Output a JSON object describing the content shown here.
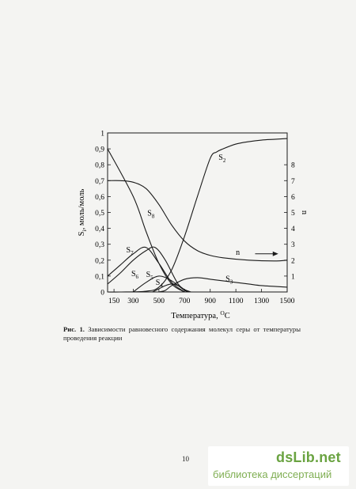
{
  "chart_data": {
    "type": "line",
    "xlabel": "Температура, ",
    "xlabel_sup": "O",
    "xlabel_unit": "C",
    "ylabel_left": "S",
    "ylabel_left_sub": "i",
    "ylabel_left_rest": ", моль/моль",
    "ylabel_right": "n",
    "xlim": [
      100,
      1500
    ],
    "ylim_left": [
      0,
      1
    ],
    "ylim_right": [
      0,
      10
    ],
    "x_ticks": [
      "150",
      "300",
      "500",
      "700",
      "900",
      "1100",
      "1300",
      "1500"
    ],
    "x_tick_values": [
      150,
      300,
      500,
      700,
      900,
      1100,
      1300,
      1500
    ],
    "y_left_ticks": [
      "0",
      "0,1",
      "0,2",
      "0,3",
      "0,4",
      "0,5",
      "0,6",
      "0,7",
      "0,8",
      "0,9",
      "1"
    ],
    "y_left_tick_values": [
      0,
      0.1,
      0.2,
      0.3,
      0.4,
      0.5,
      0.6,
      0.7,
      0.8,
      0.9,
      1.0
    ],
    "y_right_ticks": [
      "1",
      "2",
      "3",
      "4",
      "5",
      "6",
      "7",
      "8"
    ],
    "y_right_tick_values": [
      1,
      2,
      3,
      4,
      5,
      6,
      7,
      8
    ],
    "grid": false,
    "series": [
      {
        "name": "S",
        "sub": "2",
        "axis": "left",
        "x": [
          100,
          200,
          400,
          500,
          600,
          700,
          800,
          900,
          950,
          1000,
          1100,
          1200,
          1300,
          1400,
          1500
        ],
        "y": [
          0,
          0,
          0.005,
          0.03,
          0.14,
          0.35,
          0.6,
          0.84,
          0.88,
          0.9,
          0.93,
          0.945,
          0.955,
          0.96,
          0.965
        ],
        "label_at": [
          965,
          0.83
        ]
      },
      {
        "name": "S",
        "sub": "8",
        "axis": "left",
        "x": [
          100,
          300,
          400,
          500,
          600,
          700
        ],
        "y": [
          0.9,
          0.6,
          0.38,
          0.18,
          0.05,
          0.0
        ],
        "label_at": [
          410,
          0.48
        ]
      },
      {
        "name": "S",
        "sub": "7",
        "axis": "left",
        "x": [
          100,
          200,
          300,
          400,
          500,
          600,
          700
        ],
        "y": [
          0.1,
          0.17,
          0.24,
          0.28,
          0.18,
          0.06,
          0.0
        ],
        "label_at": [
          245,
          0.25
        ]
      },
      {
        "name": "S",
        "sub": "6",
        "axis": "left",
        "x": [
          100,
          200,
          300,
          400,
          470,
          550,
          650,
          730
        ],
        "y": [
          0.05,
          0.12,
          0.2,
          0.26,
          0.28,
          0.2,
          0.05,
          0.0
        ],
        "label_at": [
          285,
          0.1
        ]
      },
      {
        "name": "S",
        "sub": "5",
        "axis": "left",
        "x": [
          300,
          400,
          500,
          600,
          700,
          750
        ],
        "y": [
          0.0,
          0.06,
          0.1,
          0.07,
          0.01,
          0.0
        ],
        "label_at": [
          400,
          0.095
        ]
      },
      {
        "name": "S",
        "sub": "4",
        "axis": "left",
        "x": [
          450,
          500,
          550,
          600,
          650,
          700,
          750
        ],
        "y": [
          0.0,
          0.02,
          0.04,
          0.05,
          0.04,
          0.015,
          0.0
        ],
        "label_at": [
          475,
          0.045
        ]
      },
      {
        "name": "S",
        "sub": "3",
        "axis": "left",
        "x": [
          500,
          550,
          600,
          700,
          800,
          900,
          1000,
          1100,
          1200,
          1300,
          1400,
          1500
        ],
        "y": [
          0.0,
          0.01,
          0.04,
          0.08,
          0.09,
          0.08,
          0.07,
          0.06,
          0.05,
          0.04,
          0.035,
          0.03
        ],
        "label_at": [
          1020,
          0.068
        ]
      },
      {
        "name": "n",
        "sub": "",
        "axis": "right",
        "x": [
          100,
          200,
          300,
          400,
          500,
          600,
          700,
          800,
          900,
          1000,
          1200,
          1400,
          1500
        ],
        "y": [
          7.0,
          7.0,
          6.9,
          6.5,
          5.5,
          4.2,
          3.2,
          2.6,
          2.3,
          2.15,
          2.0,
          1.95,
          2.0
        ],
        "label_at": [
          1100,
          2.35
        ],
        "arrow": true
      }
    ]
  },
  "caption": {
    "label": "Рис. 1.",
    "text": " Зависимости равновесного содержания молекул серы от температуры проведения реакции"
  },
  "page_number": "10",
  "watermark": {
    "logo": "dsLib.net",
    "subtitle": "библиотека диссертаций"
  }
}
